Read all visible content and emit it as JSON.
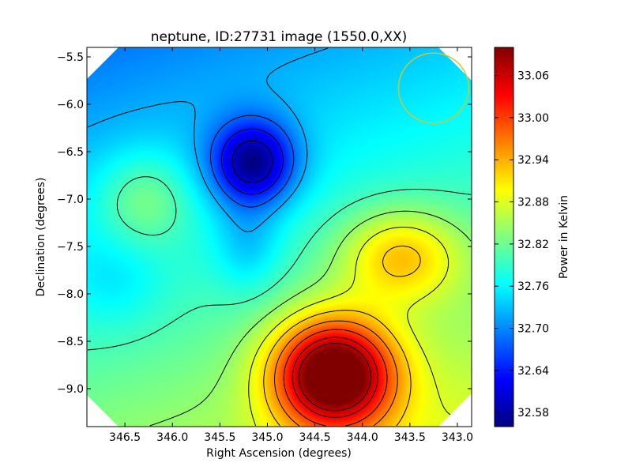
{
  "chart_data": {
    "type": "heatmap",
    "title": "neptune, ID:27731 image (1550.0,XX)",
    "xlabel": "Right Ascension (degrees)",
    "ylabel": "Declination (degrees)",
    "xlim": [
      346.9,
      342.85
    ],
    "ylim": [
      -9.4,
      -5.4
    ],
    "x_ticks": [
      346.5,
      346.0,
      345.5,
      345.0,
      344.5,
      344.0,
      343.5,
      343.0
    ],
    "x_tick_labels": [
      "346.5",
      "346.0",
      "345.5",
      "345.0",
      "344.5",
      "344.0",
      "343.5",
      "343.0"
    ],
    "y_ticks": [
      -5.5,
      -6.0,
      -6.5,
      -7.0,
      -7.5,
      -8.0,
      -8.5,
      -9.0
    ],
    "y_tick_labels": [
      "−5.5",
      "−6.0",
      "−6.5",
      "−7.0",
      "−7.5",
      "−8.0",
      "−8.5",
      "−9.0"
    ],
    "colorbar": {
      "label": "Power in Kelvin",
      "range": [
        32.56,
        33.1
      ],
      "colormap": "jet",
      "ticks": [
        32.58,
        32.64,
        32.7,
        32.76,
        32.82,
        32.88,
        32.94,
        33.0,
        33.06
      ],
      "tick_labels": [
        "32.58",
        "32.64",
        "32.70",
        "32.76",
        "32.82",
        "32.88",
        "32.94",
        "33.00",
        "33.06"
      ]
    },
    "field": {
      "base_value": 32.76,
      "features": [
        {
          "kind": "minimum",
          "ra": 345.15,
          "dec": -6.62,
          "amplitude": -0.19
        },
        {
          "kind": "minimum-arm",
          "ra": 345.2,
          "dec": -7.5,
          "amplitude": -0.05
        },
        {
          "kind": "maximum",
          "ra": 344.3,
          "dec": -8.85,
          "amplitude": 0.32
        },
        {
          "kind": "maximum-lobe",
          "ra": 343.6,
          "dec": -7.6,
          "amplitude": 0.12
        },
        {
          "kind": "local-high",
          "ra": 346.3,
          "dec": -7.0,
          "amplitude": 0.07
        },
        {
          "kind": "local-low",
          "ra": 346.6,
          "dec": -7.9,
          "amplitude": -0.03
        }
      ],
      "contour_levels": [
        32.6,
        32.64,
        32.68,
        32.72,
        32.8,
        32.84,
        32.88,
        32.92,
        32.96,
        33.0,
        33.04,
        33.07
      ]
    },
    "circle_marker": {
      "ra": 343.25,
      "dec": -5.83,
      "radius_deg": 0.37,
      "color": "#c8c832"
    },
    "grid": false,
    "footprint": "octagon"
  }
}
